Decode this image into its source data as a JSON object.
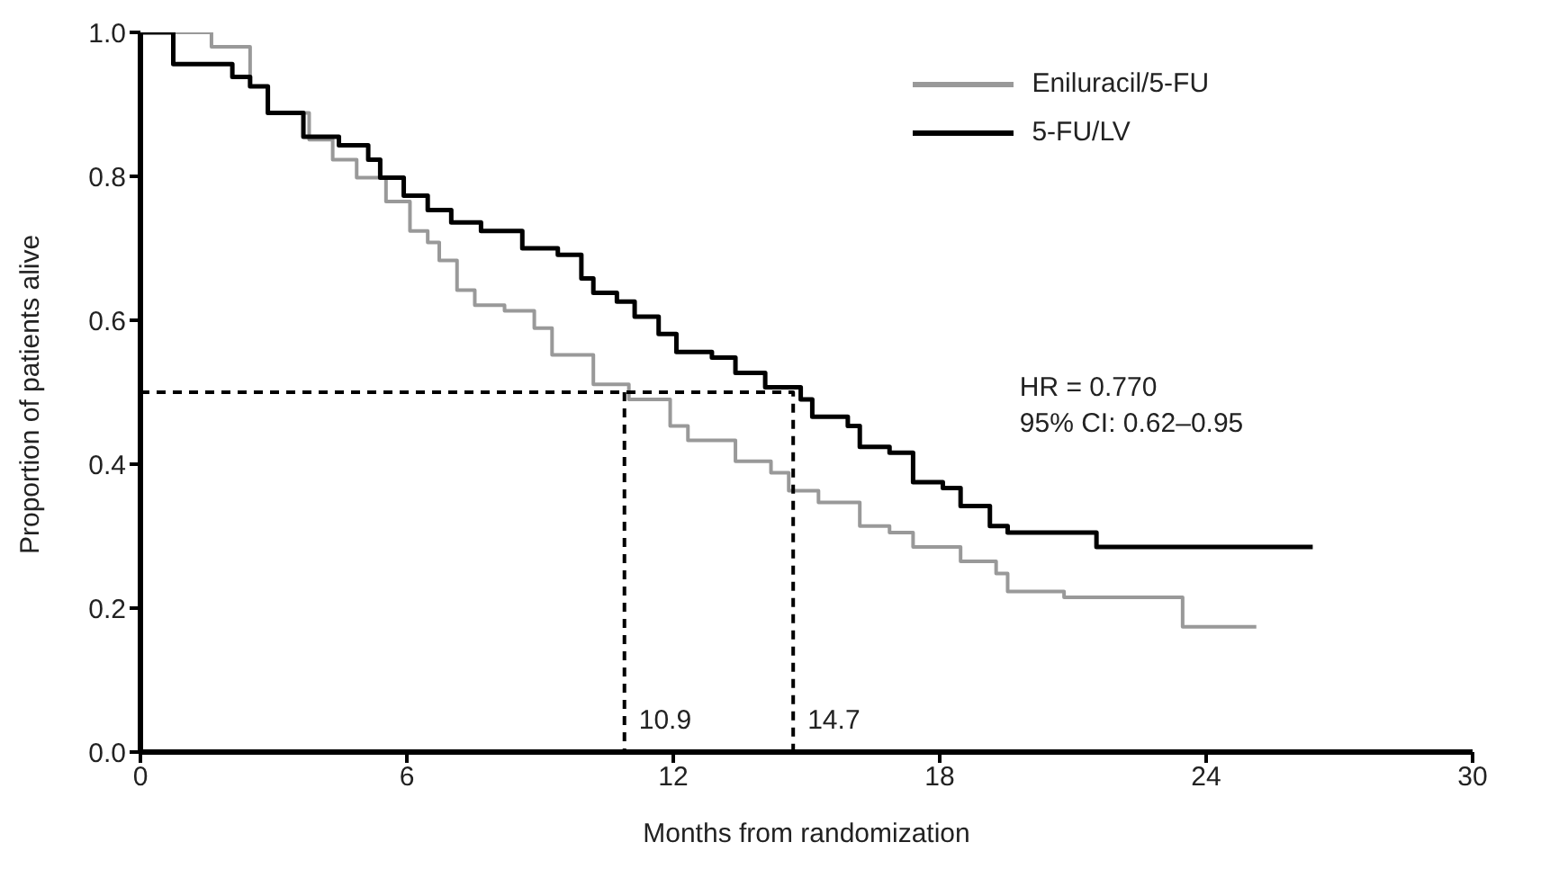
{
  "chart_data": {
    "type": "step",
    "xlabel": "Months from randomization",
    "ylabel": "Proportion of patients alive",
    "xlim": [
      0,
      30
    ],
    "xticks": [
      0,
      6,
      12,
      18,
      24,
      30
    ],
    "ylim": [
      0,
      1
    ],
    "yticks": [
      {
        "value": 0,
        "label": "0.0"
      },
      {
        "value": 0.2,
        "label": "0.2"
      },
      {
        "value": 0.4,
        "label": "0.4"
      },
      {
        "value": 0.6,
        "label": "0.6"
      },
      {
        "value": 0.8,
        "label": "0.8"
      },
      {
        "value": 1,
        "label": "1.0"
      }
    ],
    "legend": "top right",
    "marker": "none",
    "series": [
      {
        "name": "Eniluracil/5-FU",
        "color": "#999999",
        "x": [
          0,
          1.6,
          2.47,
          2.87,
          3.8,
          4.33,
          4.87,
          5.53,
          6.07,
          6.47,
          6.73,
          7.13,
          7.53,
          8.2,
          8.87,
          9.27,
          10.2,
          11.0,
          11.93,
          12.33,
          13.4,
          14.2,
          14.6,
          15.27,
          16.2,
          16.87,
          17.4,
          18.47,
          19.27,
          19.53,
          20.8,
          23.47,
          25.13
        ],
        "values": [
          1,
          0.98,
          0.925,
          0.888,
          0.851,
          0.823,
          0.798,
          0.765,
          0.724,
          0.708,
          0.683,
          0.642,
          0.621,
          0.613,
          0.589,
          0.552,
          0.511,
          0.49,
          0.453,
          0.433,
          0.404,
          0.388,
          0.363,
          0.347,
          0.314,
          0.305,
          0.285,
          0.265,
          0.248,
          0.223,
          0.215,
          0.174,
          0.174
        ]
      },
      {
        "name": "5-FU/LV",
        "color": "#000000",
        "x": [
          0,
          0.74,
          2.07,
          2.47,
          2.87,
          3.67,
          4.47,
          5.13,
          5.4,
          5.93,
          6.47,
          7.0,
          7.67,
          8.6,
          9.4,
          9.93,
          10.2,
          10.73,
          11.13,
          11.67,
          12.07,
          12.87,
          13.4,
          14.07,
          14.87,
          15.13,
          15.93,
          16.2,
          16.87,
          17.4,
          18.07,
          18.47,
          19.13,
          19.53,
          21.53,
          26.4
        ],
        "values": [
          1,
          0.956,
          0.938,
          0.925,
          0.888,
          0.855,
          0.843,
          0.823,
          0.798,
          0.773,
          0.753,
          0.736,
          0.724,
          0.7,
          0.691,
          0.658,
          0.638,
          0.626,
          0.605,
          0.581,
          0.556,
          0.548,
          0.527,
          0.507,
          0.49,
          0.466,
          0.453,
          0.424,
          0.416,
          0.375,
          0.367,
          0.342,
          0.314,
          0.305,
          0.285,
          0.285
        ]
      },
      {
        "type": "line",
        "line_style": "dashed",
        "color": "#000000",
        "x": [
          0,
          14.7,
          14.7
        ],
        "values": [
          0.5,
          0.5,
          0
        ]
      },
      {
        "type": "line",
        "line_style": "dashed",
        "color": "#000000",
        "x": [
          10.9,
          10.9
        ],
        "values": [
          0.5,
          0
        ]
      }
    ],
    "annotations": [
      {
        "text": "10.9",
        "x": 10.9,
        "y": 0
      },
      {
        "text": "14.7",
        "x": 14.7,
        "y": 0
      },
      "HR = 0.770",
      "95% CI: 0.62–0.95"
    ]
  }
}
